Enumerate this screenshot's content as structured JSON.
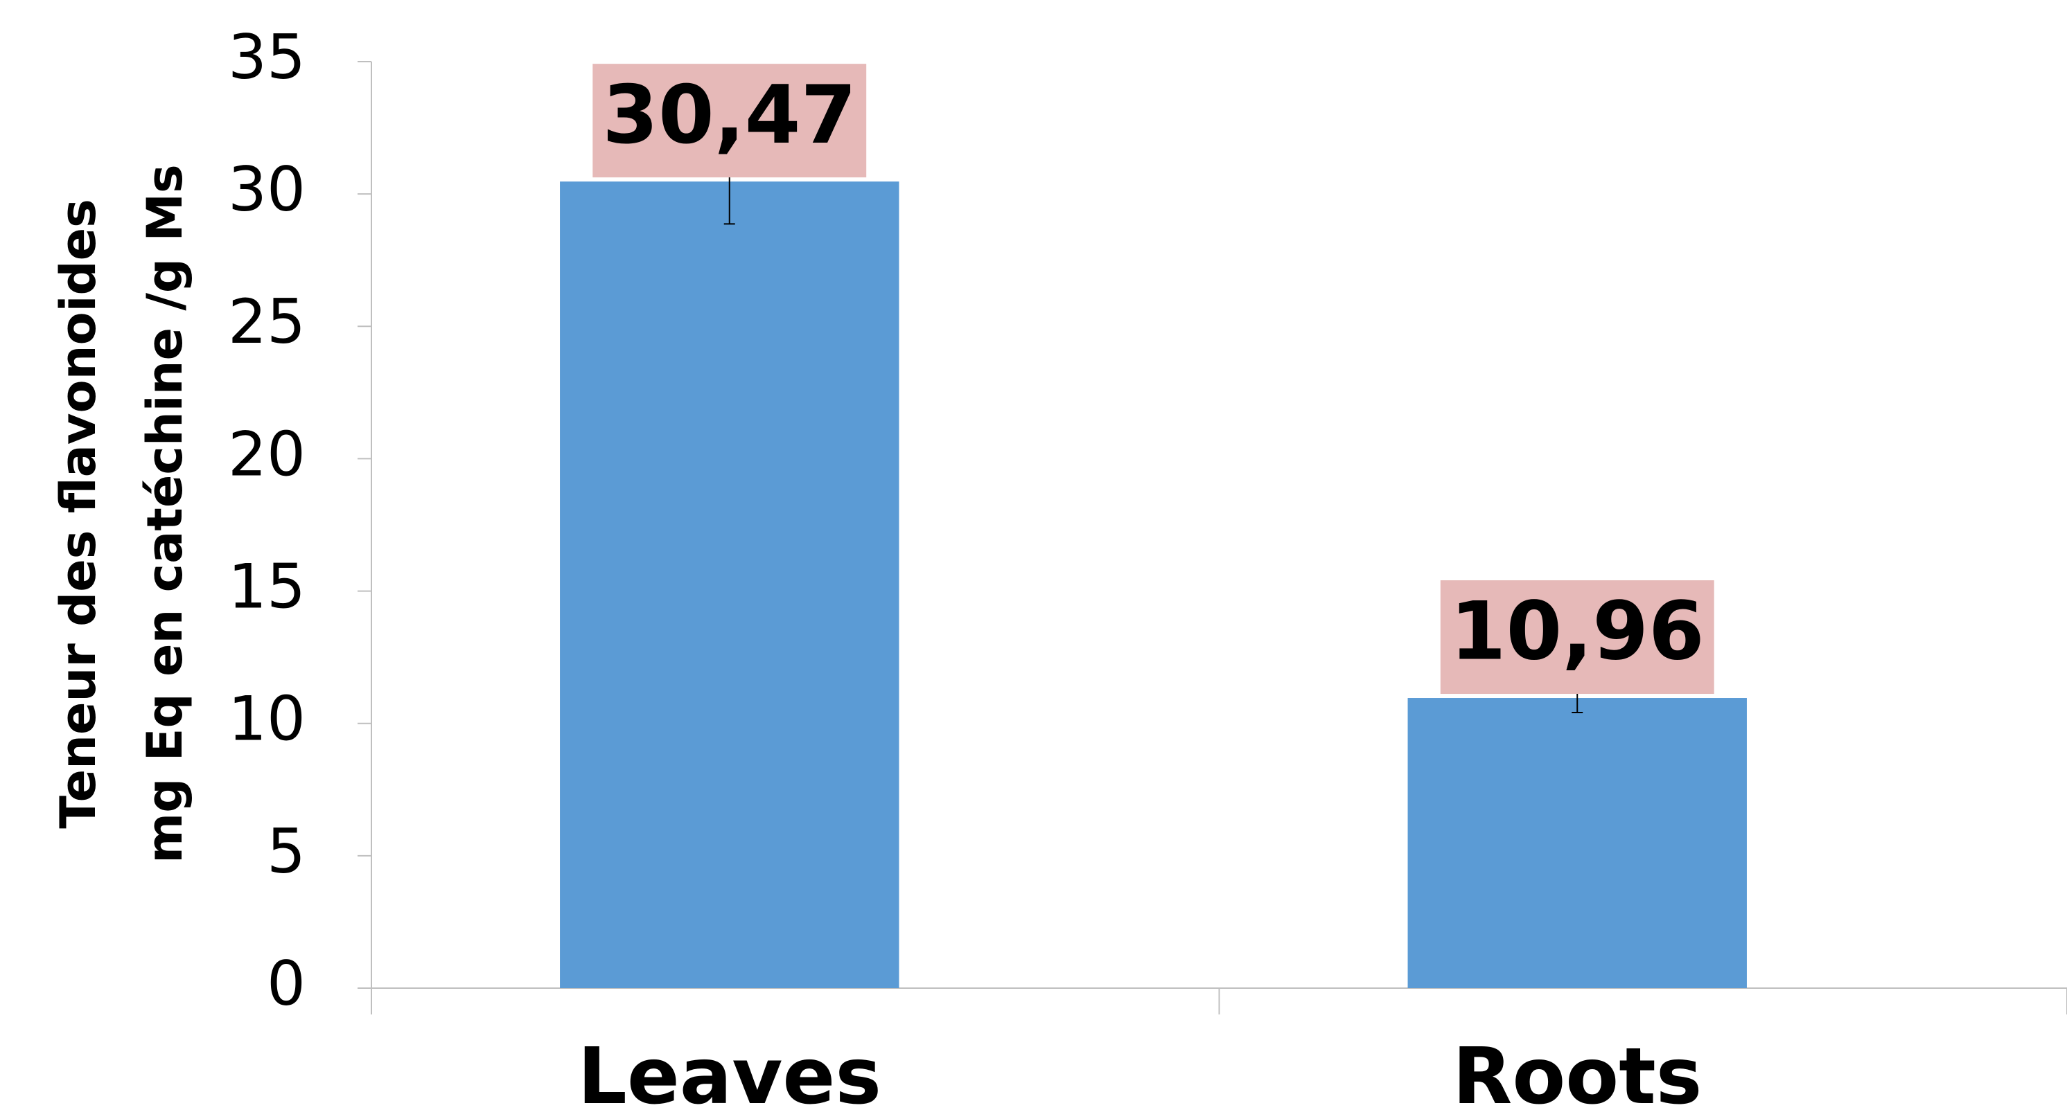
{
  "chart_data": {
    "type": "bar",
    "ylabel": [
      "Teneur des flavonoides",
      "mg Eq en catéchine /g Ms"
    ],
    "categories": [
      "Leaves",
      "Roots"
    ],
    "values": [
      30.47,
      10.96
    ],
    "value_labels": [
      "30,47",
      "10,96"
    ],
    "errors": [
      1.6,
      0.55
    ],
    "color": "#5b9bd5",
    "label_box_color": "#e6b9b8",
    "ylim": [
      0,
      35
    ],
    "yticks": [
      0,
      5,
      10,
      15,
      20,
      25,
      30,
      35
    ],
    "grid": false
  }
}
